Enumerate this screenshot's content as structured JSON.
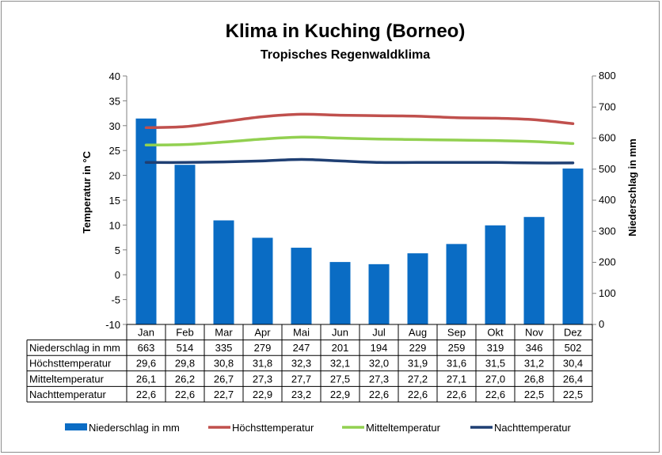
{
  "chart_data": {
    "type": "bar",
    "title": "Klima in Kuching (Borneo)",
    "subtitle": "Tropisches Regenwaldklima",
    "categories": [
      "Jan",
      "Feb",
      "Mar",
      "Apr",
      "Mai",
      "Jun",
      "Jul",
      "Aug",
      "Sep",
      "Okt",
      "Nov",
      "Dez"
    ],
    "ylabel_left": "Temperatur in °C",
    "ylabel_right": "Niederschlag in mm",
    "ylim_left": [
      -10,
      40
    ],
    "ylim_right": [
      0,
      800
    ],
    "yticks_left": [
      "40",
      "35",
      "30",
      "25",
      "20",
      "15",
      "10",
      "5",
      "0",
      "-5",
      "-10"
    ],
    "yticks_right": [
      "800",
      "700",
      "600",
      "500",
      "400",
      "300",
      "200",
      "100",
      "0"
    ],
    "series": [
      {
        "name": "Niederschlag in mm",
        "type": "bar",
        "axis": "right",
        "color": "#0a6cc4",
        "values": [
          663,
          514,
          335,
          279,
          247,
          201,
          194,
          229,
          259,
          319,
          346,
          502
        ],
        "labels": [
          "663",
          "514",
          "335",
          "279",
          "247",
          "201",
          "194",
          "229",
          "259",
          "319",
          "346",
          "502"
        ]
      },
      {
        "name": "Höchsttemperatur",
        "type": "line",
        "axis": "left",
        "color": "#c0504d",
        "values": [
          29.6,
          29.8,
          30.8,
          31.8,
          32.3,
          32.1,
          32.0,
          31.9,
          31.6,
          31.5,
          31.2,
          30.4
        ],
        "labels": [
          "29,6",
          "29,8",
          "30,8",
          "31,8",
          "32,3",
          "32,1",
          "32,0",
          "31,9",
          "31,6",
          "31,5",
          "31,2",
          "30,4"
        ]
      },
      {
        "name": "Mitteltemperatur",
        "type": "line",
        "axis": "left",
        "color": "#92d050",
        "values": [
          26.1,
          26.2,
          26.7,
          27.3,
          27.7,
          27.5,
          27.3,
          27.2,
          27.1,
          27.0,
          26.8,
          26.4
        ],
        "labels": [
          "26,1",
          "26,2",
          "26,7",
          "27,3",
          "27,7",
          "27,5",
          "27,3",
          "27,2",
          "27,1",
          "27,0",
          "26,8",
          "26,4"
        ]
      },
      {
        "name": "Nachttemperatur",
        "type": "line",
        "axis": "left",
        "color": "#1f3f73",
        "values": [
          22.6,
          22.6,
          22.7,
          22.9,
          23.2,
          22.9,
          22.6,
          22.6,
          22.6,
          22.6,
          22.5,
          22.5
        ],
        "labels": [
          "22,6",
          "22,6",
          "22,7",
          "22,9",
          "23,2",
          "22,9",
          "22,6",
          "22,6",
          "22,6",
          "22,6",
          "22,5",
          "22,5"
        ]
      }
    ],
    "grid": false,
    "legend": "bottom"
  }
}
